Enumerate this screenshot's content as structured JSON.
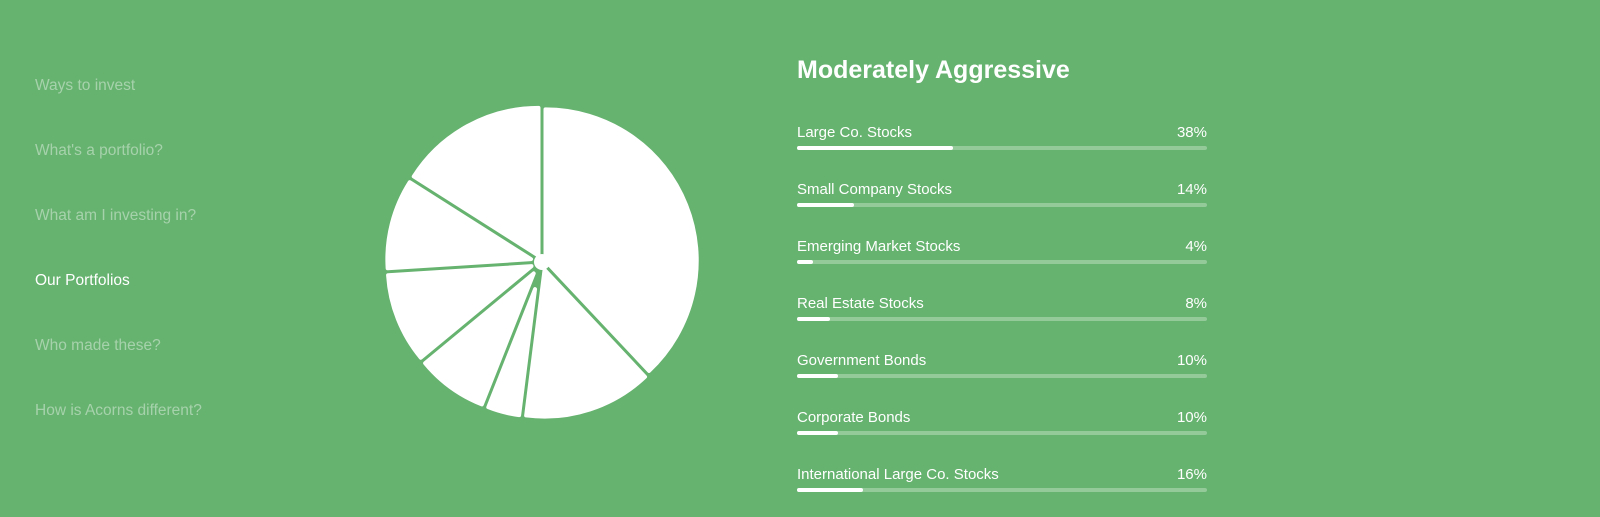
{
  "colors": {
    "background": "#66b26f",
    "text": "#ffffff",
    "nav_inactive": "rgba(255,255,255,0.42)",
    "track": "rgba(255,255,255,0.3)"
  },
  "nav": {
    "items": [
      {
        "label": "Ways to invest",
        "active": false
      },
      {
        "label": "What's a portfolio?",
        "active": false
      },
      {
        "label": "What am I investing in?",
        "active": false
      },
      {
        "label": "Our Portfolios",
        "active": true
      },
      {
        "label": "Who made these?",
        "active": false
      },
      {
        "label": "How is Acorns different?",
        "active": false
      }
    ]
  },
  "portfolio": {
    "title": "Moderately Aggressive",
    "allocations": [
      {
        "label": "Large Co. Stocks",
        "percent_label": "38%",
        "value": 38
      },
      {
        "label": "Small Company Stocks",
        "percent_label": "14%",
        "value": 14
      },
      {
        "label": "Emerging Market Stocks",
        "percent_label": "4%",
        "value": 4
      },
      {
        "label": "Real Estate Stocks",
        "percent_label": "8%",
        "value": 8
      },
      {
        "label": "Government Bonds",
        "percent_label": "10%",
        "value": 10
      },
      {
        "label": "Corporate Bonds",
        "percent_label": "10%",
        "value": 10
      },
      {
        "label": "International Large Co. Stocks",
        "percent_label": "16%",
        "value": 16
      }
    ]
  }
}
